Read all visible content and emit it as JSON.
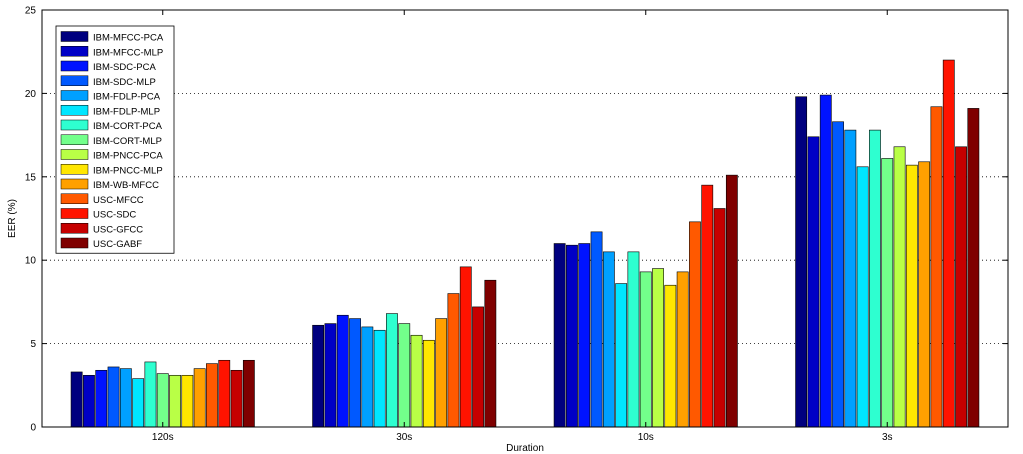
{
  "chart_data": {
    "type": "bar",
    "xlabel": "Duration",
    "ylabel": "EER (%)",
    "ylim": [
      0,
      25
    ],
    "yticks": [
      "0",
      "5",
      "10",
      "15",
      "20",
      "25"
    ],
    "grid": "horizontal dotted",
    "legend_position": "top-left",
    "categories": [
      "120s",
      "30s",
      "10s",
      "3s"
    ],
    "series": [
      {
        "name": "IBM-MFCC-PCA",
        "color": "#00007f",
        "values": [
          3.3,
          6.1,
          11.0,
          19.8
        ]
      },
      {
        "name": "IBM-MFCC-MLP",
        "color": "#0000c6",
        "values": [
          3.1,
          6.2,
          10.9,
          17.4
        ]
      },
      {
        "name": "IBM-SDC-PCA",
        "color": "#0013ff",
        "values": [
          3.4,
          6.7,
          11.0,
          19.9
        ]
      },
      {
        "name": "IBM-SDC-MLP",
        "color": "#0059ff",
        "values": [
          3.6,
          6.5,
          11.7,
          18.3
        ]
      },
      {
        "name": "IBM-FDLP-PCA",
        "color": "#00a0ff",
        "values": [
          3.5,
          6.0,
          10.5,
          17.8
        ]
      },
      {
        "name": "IBM-FDLP-MLP",
        "color": "#00e6ff",
        "values": [
          2.9,
          5.8,
          8.6,
          15.6
        ]
      },
      {
        "name": "IBM-CORT-PCA",
        "color": "#2effd0",
        "values": [
          3.9,
          6.8,
          10.5,
          17.8
        ]
      },
      {
        "name": "IBM-CORT-MLP",
        "color": "#73ff8b",
        "values": [
          3.2,
          6.2,
          9.3,
          16.1
        ]
      },
      {
        "name": "IBM-PNCC-PCA",
        "color": "#b9ff46",
        "values": [
          3.1,
          5.5,
          9.5,
          16.8
        ]
      },
      {
        "name": "IBM-PNCC-MLP",
        "color": "#ffe600",
        "values": [
          3.1,
          5.2,
          8.5,
          15.7
        ]
      },
      {
        "name": "IBM-WB-MFCC",
        "color": "#ffa000",
        "values": [
          3.5,
          6.5,
          9.3,
          15.9
        ]
      },
      {
        "name": "USC-MFCC",
        "color": "#ff5900",
        "values": [
          3.8,
          8.0,
          12.3,
          19.2
        ]
      },
      {
        "name": "USC-SDC",
        "color": "#ff1300",
        "values": [
          4.0,
          9.6,
          14.5,
          22.0
        ]
      },
      {
        "name": "USC-GFCC",
        "color": "#c60000",
        "values": [
          3.4,
          7.2,
          13.1,
          16.8
        ]
      },
      {
        "name": "USC-GABF",
        "color": "#7f0000",
        "values": [
          4.0,
          8.8,
          15.1,
          19.1
        ]
      }
    ]
  }
}
